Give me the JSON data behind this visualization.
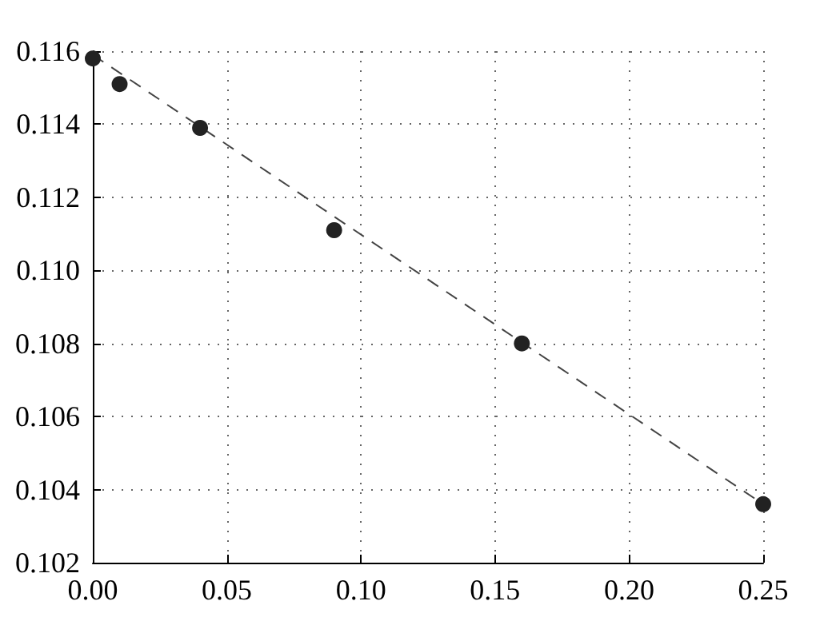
{
  "chart_data": {
    "type": "scatter",
    "x": [
      0,
      0.01,
      0.04,
      0.09,
      0.16,
      0.25
    ],
    "series": [
      {
        "color": "#222222",
        "marker": "circle",
        "values": [
          0.1158,
          0.1151,
          0.1139,
          0.1111,
          0.108,
          0.1036
        ]
      },
      {
        "type": "line",
        "color": "#444444",
        "marker": "none",
        "line_style": "dashed",
        "x": [
          0,
          0.25
        ],
        "values": [
          0.1159,
          0.1036
        ]
      }
    ],
    "xlim": [
      0,
      0.25
    ],
    "ylim": [
      0.102,
      0.116
    ],
    "xticks": [
      {
        "value": 0,
        "label": "0.00"
      },
      {
        "value": 0.05,
        "label": "0.05"
      },
      {
        "value": 0.1,
        "label": "0.10"
      },
      {
        "value": 0.15,
        "label": "0.15"
      },
      {
        "value": 0.2,
        "label": "0.20"
      },
      {
        "value": 0.25,
        "label": "0.25"
      }
    ],
    "yticks": [
      0.102,
      0.104,
      0.106,
      0.108,
      {
        "value": 0.11,
        "label": "0.110"
      },
      0.112,
      0.114,
      0.116
    ],
    "grid": true
  }
}
